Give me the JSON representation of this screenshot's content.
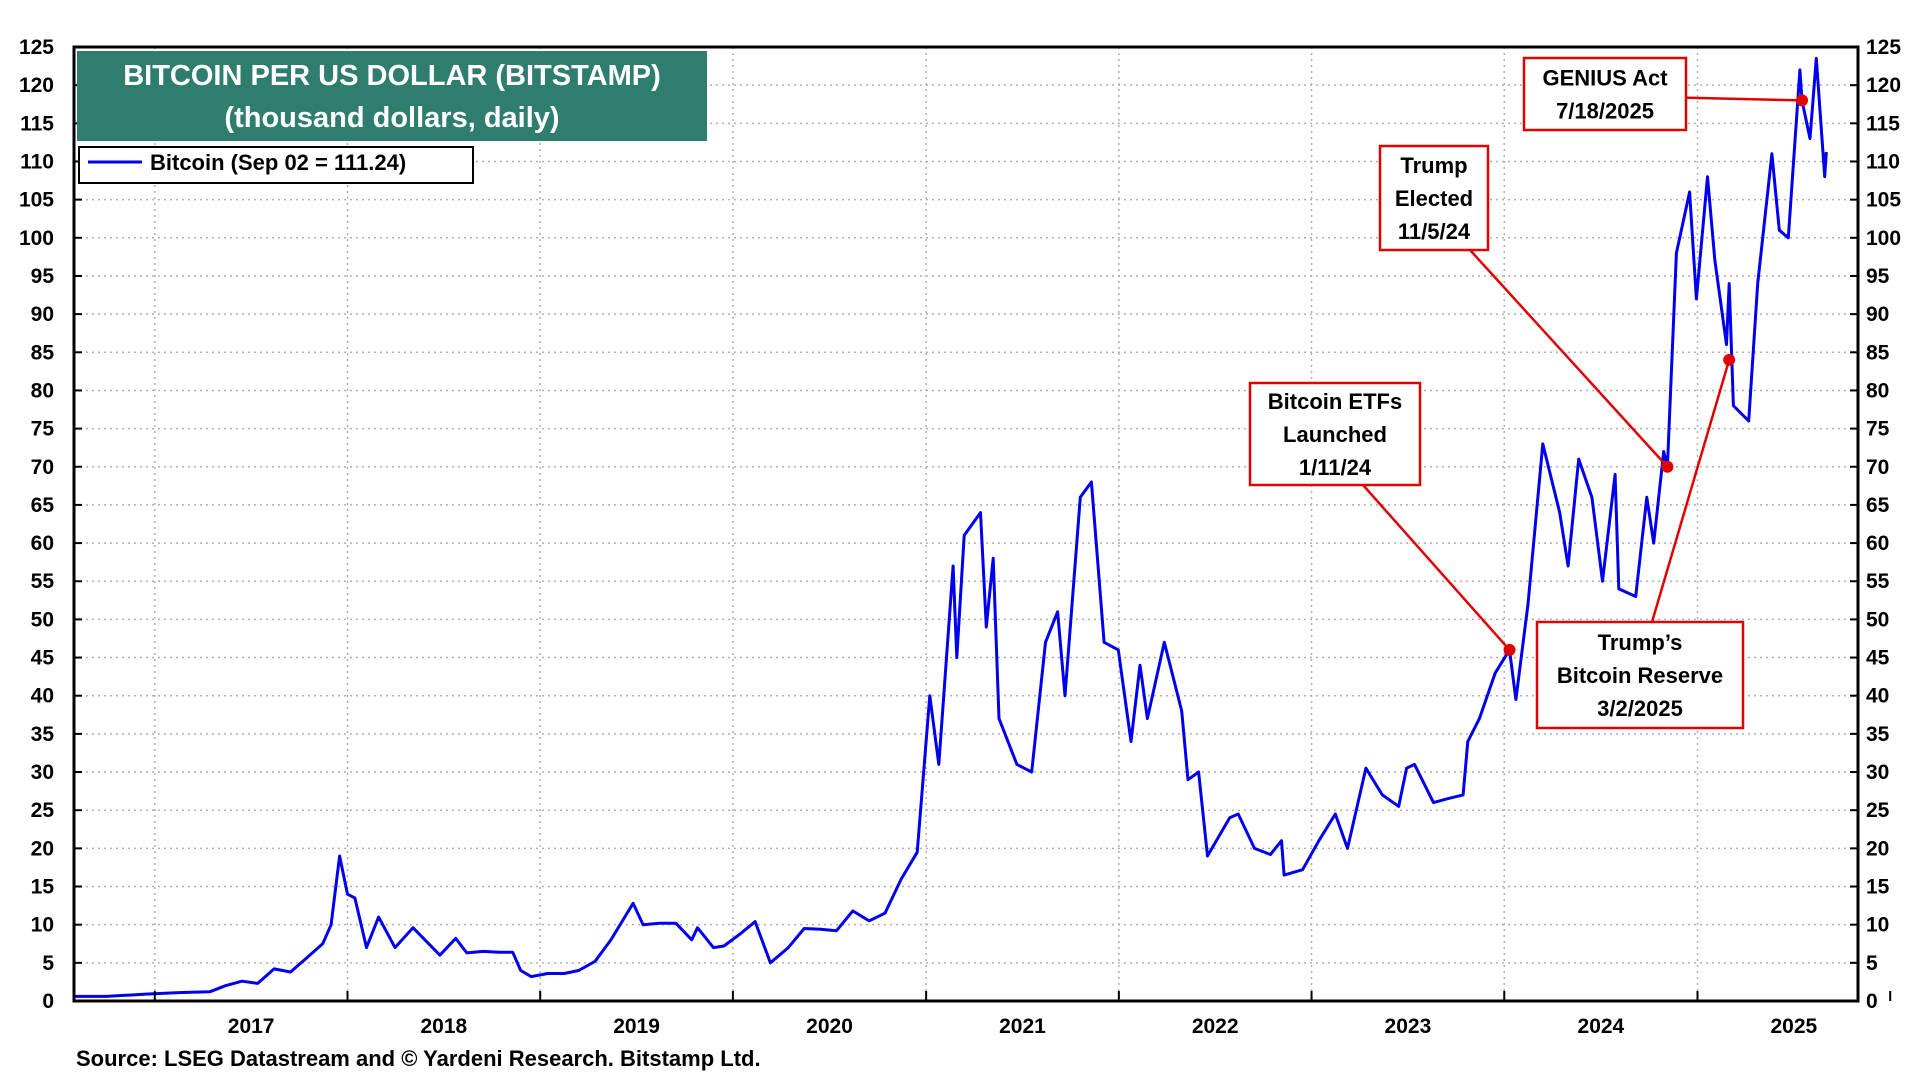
{
  "chart_data": {
    "type": "line",
    "title": "BITCOIN PER US DOLLAR (BITSTAMP)",
    "subtitle": "(thousand dollars, daily)",
    "xlabel": "",
    "ylabel": "",
    "x_range": [
      "2016-08-01",
      "2025-11-01"
    ],
    "ylim": [
      0,
      125
    ],
    "y_ticks": [
      0,
      5,
      10,
      15,
      20,
      25,
      30,
      35,
      40,
      45,
      50,
      55,
      60,
      65,
      70,
      75,
      80,
      85,
      90,
      95,
      100,
      105,
      110,
      115,
      120,
      125
    ],
    "year_labels": [
      "2017",
      "2018",
      "2019",
      "2020",
      "2021",
      "2022",
      "2023",
      "2024",
      "2025"
    ],
    "grid": true,
    "legend_position": "top-left",
    "series": [
      {
        "name": "Bitcoin (Sep 02 = 111.24)",
        "color": "#0000ee",
        "points": [
          [
            "2016-08-01",
            0.6
          ],
          [
            "2016-10-01",
            0.6
          ],
          [
            "2016-12-15",
            0.9
          ],
          [
            "2017-02-15",
            1.1
          ],
          [
            "2017-04-15",
            1.2
          ],
          [
            "2017-05-15",
            2.0
          ],
          [
            "2017-06-15",
            2.6
          ],
          [
            "2017-07-15",
            2.3
          ],
          [
            "2017-08-15",
            4.2
          ],
          [
            "2017-09-15",
            3.8
          ],
          [
            "2017-10-15",
            5.6
          ],
          [
            "2017-11-15",
            7.5
          ],
          [
            "2017-12-01",
            10.0
          ],
          [
            "2017-12-17",
            19.0
          ],
          [
            "2018-01-01",
            14.0
          ],
          [
            "2018-01-15",
            13.5
          ],
          [
            "2018-02-06",
            7.0
          ],
          [
            "2018-03-01",
            11.0
          ],
          [
            "2018-04-01",
            7.0
          ],
          [
            "2018-05-05",
            9.6
          ],
          [
            "2018-06-25",
            6.0
          ],
          [
            "2018-07-25",
            8.2
          ],
          [
            "2018-08-15",
            6.3
          ],
          [
            "2018-09-15",
            6.5
          ],
          [
            "2018-10-15",
            6.4
          ],
          [
            "2018-11-10",
            6.4
          ],
          [
            "2018-11-25",
            4.0
          ],
          [
            "2018-12-15",
            3.2
          ],
          [
            "2019-01-15",
            3.6
          ],
          [
            "2019-02-15",
            3.6
          ],
          [
            "2019-03-15",
            4.0
          ],
          [
            "2019-04-15",
            5.2
          ],
          [
            "2019-05-15",
            8.0
          ],
          [
            "2019-06-26",
            12.8
          ],
          [
            "2019-07-15",
            10.0
          ],
          [
            "2019-08-15",
            10.2
          ],
          [
            "2019-09-15",
            10.2
          ],
          [
            "2019-10-15",
            8.0
          ],
          [
            "2019-10-26",
            9.6
          ],
          [
            "2019-11-25",
            7.0
          ],
          [
            "2019-12-15",
            7.2
          ],
          [
            "2020-01-15",
            8.8
          ],
          [
            "2020-02-12",
            10.4
          ],
          [
            "2020-03-12",
            5.0
          ],
          [
            "2020-04-15",
            7.0
          ],
          [
            "2020-05-15",
            9.5
          ],
          [
            "2020-06-15",
            9.4
          ],
          [
            "2020-07-15",
            9.2
          ],
          [
            "2020-08-15",
            11.8
          ],
          [
            "2020-09-15",
            10.5
          ],
          [
            "2020-10-15",
            11.5
          ],
          [
            "2020-11-15",
            16.0
          ],
          [
            "2020-12-15",
            19.5
          ],
          [
            "2021-01-08",
            40.0
          ],
          [
            "2021-01-25",
            31.0
          ],
          [
            "2021-02-21",
            57.0
          ],
          [
            "2021-02-28",
            45.0
          ],
          [
            "2021-03-14",
            61.0
          ],
          [
            "2021-04-14",
            64.0
          ],
          [
            "2021-04-25",
            49.0
          ],
          [
            "2021-05-08",
            58.0
          ],
          [
            "2021-05-19",
            37.0
          ],
          [
            "2021-06-22",
            31.0
          ],
          [
            "2021-07-20",
            30.0
          ],
          [
            "2021-08-15",
            47.0
          ],
          [
            "2021-09-07",
            51.0
          ],
          [
            "2021-09-21",
            40.0
          ],
          [
            "2021-10-20",
            66.0
          ],
          [
            "2021-11-10",
            68.0
          ],
          [
            "2021-12-04",
            47.0
          ],
          [
            "2021-12-31",
            46.0
          ],
          [
            "2022-01-24",
            34.0
          ],
          [
            "2022-02-10",
            44.0
          ],
          [
            "2022-02-24",
            37.0
          ],
          [
            "2022-03-28",
            47.0
          ],
          [
            "2022-04-30",
            38.0
          ],
          [
            "2022-05-12",
            29.0
          ],
          [
            "2022-06-01",
            30.0
          ],
          [
            "2022-06-18",
            19.0
          ],
          [
            "2022-07-30",
            24.0
          ],
          [
            "2022-08-15",
            24.5
          ],
          [
            "2022-09-15",
            20.0
          ],
          [
            "2022-10-15",
            19.2
          ],
          [
            "2022-11-05",
            21.0
          ],
          [
            "2022-11-10",
            16.5
          ],
          [
            "2022-12-15",
            17.2
          ],
          [
            "2023-01-15",
            21.0
          ],
          [
            "2023-02-15",
            24.5
          ],
          [
            "2023-03-10",
            20.0
          ],
          [
            "2023-04-14",
            30.5
          ],
          [
            "2023-05-15",
            27.0
          ],
          [
            "2023-06-15",
            25.5
          ],
          [
            "2023-06-30",
            30.5
          ],
          [
            "2023-07-15",
            31.0
          ],
          [
            "2023-08-20",
            26.0
          ],
          [
            "2023-09-15",
            26.5
          ],
          [
            "2023-10-15",
            27.0
          ],
          [
            "2023-10-24",
            34.0
          ],
          [
            "2023-11-15",
            37.0
          ],
          [
            "2023-12-15",
            43.0
          ],
          [
            "2024-01-11",
            46.0
          ],
          [
            "2024-01-23",
            39.5
          ],
          [
            "2024-02-15",
            52.0
          ],
          [
            "2024-03-14",
            73.0
          ],
          [
            "2024-04-15",
            64.0
          ],
          [
            "2024-05-01",
            57.0
          ],
          [
            "2024-05-21",
            71.0
          ],
          [
            "2024-06-15",
            66.0
          ],
          [
            "2024-07-05",
            55.0
          ],
          [
            "2024-07-29",
            69.0
          ],
          [
            "2024-08-05",
            54.0
          ],
          [
            "2024-09-06",
            53.0
          ],
          [
            "2024-09-27",
            66.0
          ],
          [
            "2024-10-10",
            60.0
          ],
          [
            "2024-10-29",
            72.0
          ],
          [
            "2024-11-05",
            70.0
          ],
          [
            "2024-11-22",
            98.0
          ],
          [
            "2024-12-17",
            106.0
          ],
          [
            "2024-12-30",
            92.0
          ],
          [
            "2025-01-20",
            108.0
          ],
          [
            "2025-02-03",
            97.0
          ],
          [
            "2025-02-25",
            86.0
          ],
          [
            "2025-03-02",
            94.0
          ],
          [
            "2025-03-10",
            78.0
          ],
          [
            "2025-04-08",
            76.0
          ],
          [
            "2025-04-25",
            94.0
          ],
          [
            "2025-05-22",
            111.0
          ],
          [
            "2025-06-05",
            101.0
          ],
          [
            "2025-06-22",
            100.0
          ],
          [
            "2025-07-14",
            122.0
          ],
          [
            "2025-07-18",
            118.0
          ],
          [
            "2025-08-02",
            113.0
          ],
          [
            "2025-08-14",
            123.5
          ],
          [
            "2025-08-30",
            108.0
          ],
          [
            "2025-09-02",
            111.24
          ]
        ]
      }
    ],
    "annotations": [
      {
        "id": "genius",
        "lines": [
          "GENIUS Act",
          "7/18/2025"
        ],
        "date": "2025-07-18",
        "value": 118
      },
      {
        "id": "trump-elected",
        "lines": [
          "Trump",
          "Elected",
          "11/5/24"
        ],
        "date": "2024-11-05",
        "value": 70
      },
      {
        "id": "etfs",
        "lines": [
          "Bitcoin ETFs",
          "Launched",
          "1/11/24"
        ],
        "date": "2024-01-11",
        "value": 46
      },
      {
        "id": "reserve",
        "lines": [
          "Trump’s",
          "Bitcoin Reserve",
          "3/2/2025"
        ],
        "date": "2025-03-02",
        "value": 84
      }
    ]
  },
  "legend": {
    "label": "Bitcoin (Sep 02 = 111.24)"
  },
  "source": "Source: LSEG Datastream and © Yardeni Research. Bitstamp Ltd.",
  "colors": {
    "title_box": "#2e7d6e",
    "line": "#0000ee",
    "annotation": "#e00000",
    "grid": "#b0b0b0"
  }
}
